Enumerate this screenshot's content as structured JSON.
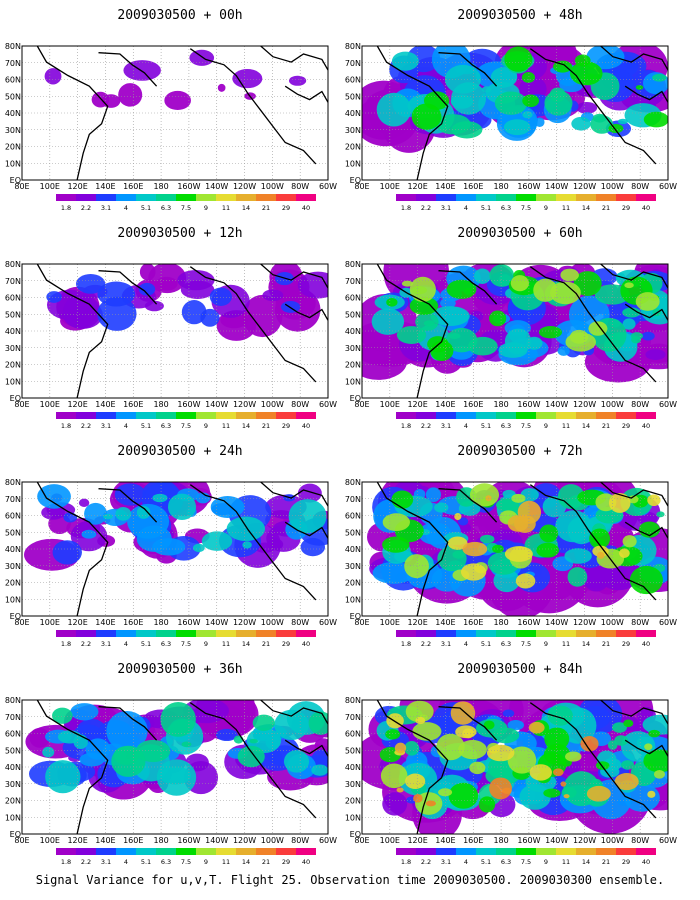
{
  "caption": "Signal Variance for u,v,T. Flight 25. Observation time 2009030500. 2009030300 ensemble.",
  "panels": [
    {
      "title": "2009030500 + 00h",
      "level": 0.05
    },
    {
      "title": "2009030500 + 48h",
      "level": 0.55
    },
    {
      "title": "2009030500 + 12h",
      "level": 0.22
    },
    {
      "title": "2009030500 + 60h",
      "level": 0.68
    },
    {
      "title": "2009030500 + 24h",
      "level": 0.35
    },
    {
      "title": "2009030500 + 72h",
      "level": 0.8
    },
    {
      "title": "2009030500 + 36h",
      "level": 0.45
    },
    {
      "title": "2009030500 + 84h",
      "level": 0.9
    }
  ],
  "lon_labels": [
    "80E",
    "100E",
    "120E",
    "140E",
    "160E",
    "180",
    "160W",
    "140W",
    "120W",
    "100W",
    "80W",
    "60W"
  ],
  "lat_labels": [
    "EQ",
    "10N",
    "20N",
    "30N",
    "40N",
    "50N",
    "60N",
    "70N",
    "80N"
  ],
  "legend": {
    "values": [
      "1.8",
      "2.2",
      "3.1",
      "4",
      "5.1",
      "6.3",
      "7.5",
      "9",
      "11",
      "14",
      "21",
      "29",
      "40"
    ],
    "colors": [
      "#a000c8",
      "#8200dc",
      "#1e3cff",
      "#0096ff",
      "#00c8c8",
      "#00d28c",
      "#00dc00",
      "#a0e632",
      "#e6dc32",
      "#e6af2d",
      "#f08228",
      "#fa3c3c",
      "#f00082"
    ]
  }
}
